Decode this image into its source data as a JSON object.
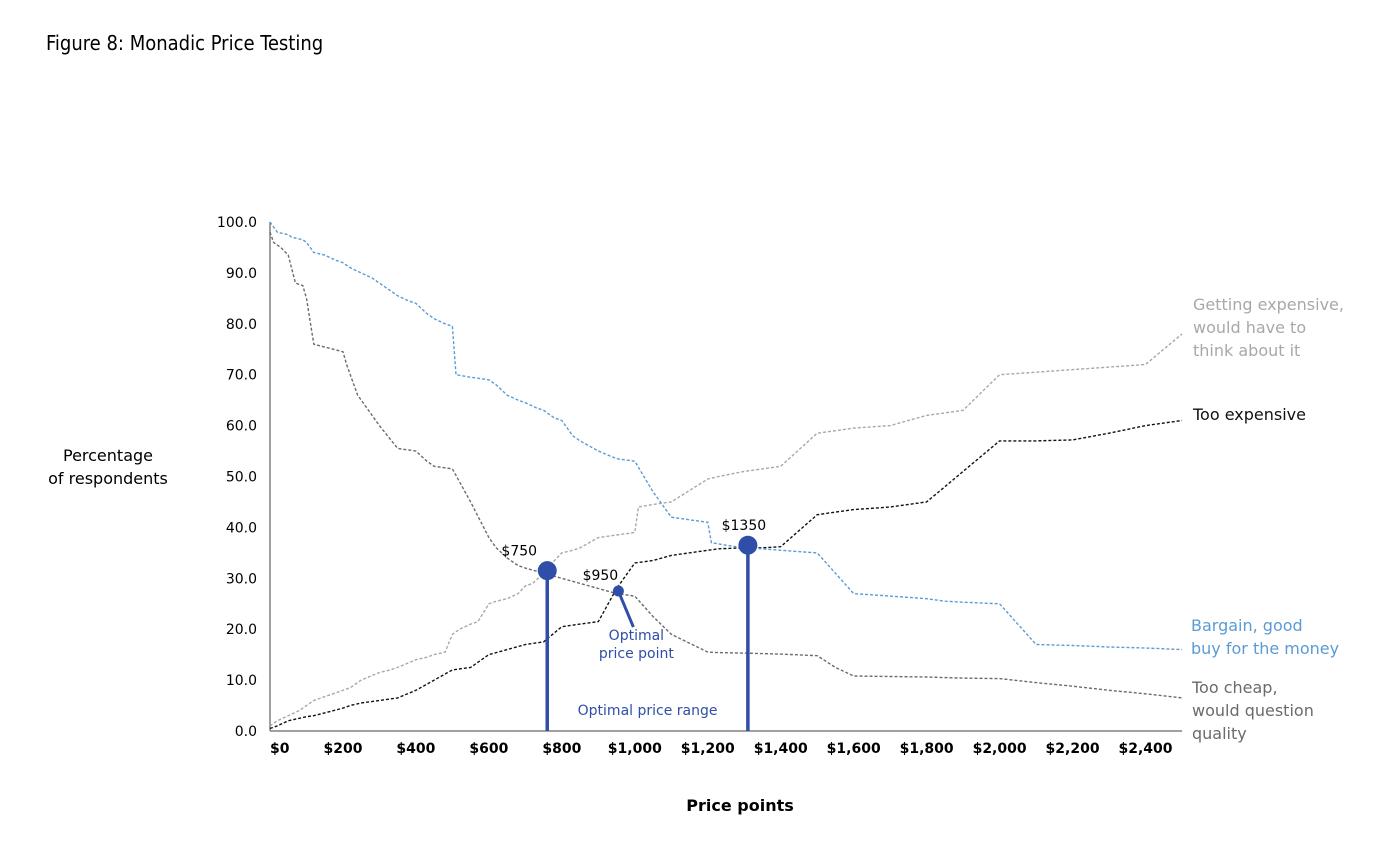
{
  "figure": {
    "title": "Figure 8: Monadic Price Testing"
  },
  "chart_data": {
    "type": "line",
    "title": "",
    "xlabel": "Price points",
    "ylabel_lines": [
      "Percentage",
      "of respondents"
    ],
    "xlim": [
      0,
      2500
    ],
    "ylim": [
      0,
      100
    ],
    "x_ticks": [
      0,
      200,
      400,
      600,
      800,
      1000,
      1200,
      1400,
      1600,
      1800,
      2000,
      2200,
      2400
    ],
    "x_tick_labels": [
      "$0",
      "$200",
      "$400",
      "$600",
      "$800",
      "$1,000",
      "$1,200",
      "$1,400",
      "$1,600",
      "$1,800",
      "$2,000",
      "$2,200",
      "$2,400"
    ],
    "y_ticks": [
      0,
      10,
      20,
      30,
      40,
      50,
      60,
      70,
      80,
      90,
      100
    ],
    "y_tick_labels": [
      "0.0",
      "10.0",
      "20.0",
      "30.0",
      "40.0",
      "50.0",
      "60.0",
      "70.0",
      "80.0",
      "90.0",
      "100.0"
    ],
    "grid": false,
    "series": [
      {
        "name_lines": [
          "Getting expensive,",
          "would have to",
          "think about it"
        ],
        "color": "#a8a8a8",
        "x": [
          0,
          20,
          50,
          80,
          100,
          120,
          200,
          220,
          250,
          300,
          330,
          350,
          400,
          430,
          450,
          480,
          500,
          520,
          550,
          570,
          600,
          620,
          650,
          680,
          700,
          720,
          750,
          780,
          800,
          830,
          850,
          900,
          950,
          1000,
          1010,
          1050,
          1100,
          1200,
          1230,
          1300,
          1350,
          1400,
          1500,
          1550,
          1600,
          1700,
          1800,
          1850,
          1900,
          2000,
          2100,
          2200,
          2300,
          2400,
          2500
        ],
        "y": [
          1,
          2,
          3,
          4,
          5,
          6,
          8,
          8.5,
          10,
          11.5,
          12,
          12.5,
          14,
          14.5,
          15,
          15.5,
          19,
          20,
          21,
          21.5,
          25,
          25.5,
          26,
          27,
          28.5,
          29,
          31,
          33.5,
          35,
          35.5,
          36,
          38,
          38.5,
          39,
          44,
          44.5,
          45,
          49.5,
          50,
          51,
          51.5,
          52,
          58.5,
          59,
          59.5,
          60,
          62,
          62.5,
          63,
          70,
          70.5,
          71,
          71.5,
          72,
          78
        ]
      },
      {
        "name_lines": [
          "Too expensive"
        ],
        "color": "#111111",
        "x": [
          0,
          20,
          50,
          80,
          100,
          120,
          200,
          220,
          250,
          300,
          350,
          400,
          450,
          500,
          550,
          600,
          650,
          700,
          750,
          800,
          850,
          900,
          950,
          1000,
          1050,
          1100,
          1200,
          1230,
          1300,
          1350,
          1400,
          1500,
          1550,
          1600,
          1700,
          1800,
          1850,
          1900,
          2000,
          2100,
          2200,
          2300,
          2400,
          2500
        ],
        "y": [
          0.5,
          1,
          2,
          2.5,
          2.8,
          3,
          4.5,
          5,
          5.5,
          6,
          6.5,
          8,
          10,
          12,
          12.5,
          15,
          16,
          17,
          17.5,
          20.5,
          21,
          21.5,
          28,
          33,
          33.5,
          34.5,
          35.5,
          35.8,
          36,
          36,
          36.2,
          42.5,
          43,
          43.5,
          44,
          45,
          48,
          51,
          57,
          57,
          57.2,
          58.5,
          60,
          61
        ]
      },
      {
        "name_lines": [
          "Bargain, good",
          "buy for the money"
        ],
        "color": "#5b9bd5",
        "x": [
          0,
          20,
          50,
          60,
          90,
          100,
          120,
          150,
          180,
          200,
          220,
          250,
          280,
          300,
          330,
          350,
          380,
          400,
          430,
          450,
          480,
          500,
          510,
          550,
          600,
          620,
          650,
          680,
          700,
          730,
          750,
          780,
          800,
          830,
          850,
          900,
          950,
          1000,
          1050,
          1100,
          1150,
          1200,
          1210,
          1250,
          1300,
          1350,
          1400,
          1500,
          1550,
          1600,
          1700,
          1800,
          1850,
          1900,
          2000,
          2100,
          2200,
          2300,
          2400,
          2500
        ],
        "y": [
          100,
          98,
          97.5,
          97,
          96.5,
          96,
          94,
          93.5,
          92.5,
          92,
          91,
          90,
          89,
          88,
          86.5,
          85.5,
          84.5,
          84,
          82,
          81,
          80,
          79.5,
          70,
          69.5,
          69,
          68,
          66,
          65,
          64.5,
          63.5,
          63,
          61.5,
          61,
          58,
          57,
          55,
          53.5,
          53,
          47,
          42,
          41.5,
          41,
          37,
          36.5,
          36,
          35.8,
          35.5,
          35,
          31,
          27,
          26.5,
          26,
          25.5,
          25.3,
          25,
          17,
          16.8,
          16.5,
          16.3,
          16
        ]
      },
      {
        "name_lines": [
          "Too cheap,",
          "would question",
          "quality"
        ],
        "color": "#6b6b6b",
        "x": [
          0,
          10,
          30,
          50,
          70,
          90,
          100,
          120,
          200,
          210,
          240,
          250,
          300,
          350,
          400,
          430,
          450,
          500,
          550,
          600,
          620,
          650,
          680,
          700,
          750,
          800,
          850,
          900,
          950,
          1000,
          1050,
          1100,
          1200,
          1230,
          1300,
          1350,
          1400,
          1500,
          1550,
          1600,
          1700,
          1800,
          1850,
          1900,
          2000,
          2100,
          2200,
          2300,
          2400,
          2500
        ],
        "y": [
          98,
          96,
          95,
          93.5,
          88,
          87.5,
          85,
          76,
          74.5,
          72,
          66,
          65,
          60,
          55.5,
          55,
          53,
          52,
          51.5,
          45,
          38,
          36,
          34,
          32.5,
          32,
          31,
          30,
          29,
          28,
          27,
          26.5,
          22.5,
          19,
          15.5,
          15.4,
          15.3,
          15.2,
          15.1,
          14.8,
          12.5,
          10.8,
          10.7,
          10.6,
          10.5,
          10.4,
          10.3,
          9.5,
          8.8,
          8,
          7.3,
          6.5
        ]
      }
    ],
    "markers": [
      {
        "label": "$750",
        "x": 760,
        "y": 31.5,
        "size": "large",
        "drop_line": true
      },
      {
        "label": "$950",
        "x": 955,
        "y": 27.5,
        "size": "small",
        "drop_line": false
      },
      {
        "label": "$1350",
        "x": 1310,
        "y": 36.5,
        "size": "large",
        "drop_line": true
      }
    ],
    "annotations": {
      "optimal_point_lines": [
        "Optimal",
        "price point"
      ],
      "optimal_range": "Optimal price range"
    },
    "highlight_color": "#2f4ea8"
  }
}
